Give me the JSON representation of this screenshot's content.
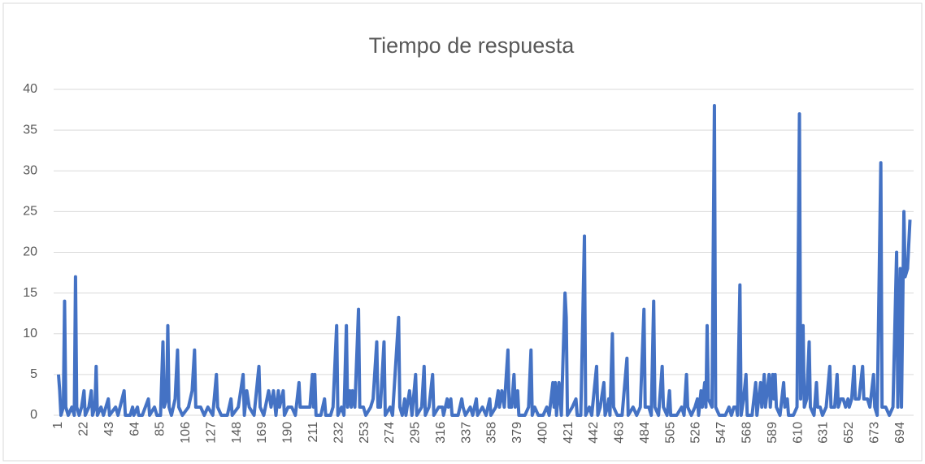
{
  "chart_data": {
    "type": "line",
    "title": "Tiempo de respuesta",
    "x": [
      1,
      2,
      3,
      5,
      6,
      7,
      9,
      12,
      14,
      15,
      16,
      18,
      20,
      22,
      23,
      26,
      28,
      29,
      31,
      32,
      33,
      36,
      38,
      42,
      43,
      48,
      50,
      55,
      56,
      60,
      62,
      63,
      66,
      67,
      70,
      75,
      76,
      80,
      82,
      85,
      87,
      88,
      90,
      91,
      92,
      94,
      97,
      99,
      100,
      103,
      108,
      111,
      113,
      114,
      118,
      121,
      124,
      128,
      131,
      132,
      135,
      140,
      143,
      144,
      149,
      151,
      153,
      154,
      156,
      158,
      162,
      166,
      167,
      170,
      174,
      176,
      178,
      180,
      182,
      183,
      186,
      187,
      190,
      193,
      196,
      199,
      200,
      205,
      208,
      210,
      211,
      212,
      213,
      217,
      220,
      221,
      225,
      227,
      230,
      231,
      234,
      236,
      238,
      239,
      241,
      242,
      243,
      245,
      248,
      249,
      252,
      254,
      258,
      260,
      263,
      264,
      266,
      269,
      270,
      274,
      276,
      281,
      282,
      284,
      286,
      287,
      290,
      292,
      295,
      296,
      300,
      302,
      303,
      306,
      309,
      310,
      314,
      317,
      318,
      321,
      322,
      324,
      325,
      330,
      333,
      334,
      336,
      340,
      342,
      345,
      346,
      350,
      353,
      356,
      357,
      361,
      363,
      364,
      366,
      368,
      371,
      372,
      374,
      376,
      377,
      379,
      380,
      385,
      388,
      390,
      391,
      393,
      396,
      400,
      403,
      405,
      408,
      409,
      410,
      411,
      413,
      415,
      418,
      419,
      420,
      424,
      427,
      428,
      431,
      434,
      435,
      438,
      440,
      444,
      445,
      447,
      450,
      451,
      453,
      454,
      455,
      457,
      458,
      461,
      465,
      469,
      470,
      474,
      477,
      480,
      483,
      484,
      487,
      489,
      491,
      492,
      495,
      498,
      499,
      502,
      504,
      505,
      510,
      514,
      516,
      518,
      519,
      522,
      525,
      527,
      528,
      530,
      531,
      533,
      534,
      535,
      536,
      539,
      541,
      542,
      545,
      550,
      553,
      555,
      557,
      559,
      560,
      562,
      563,
      565,
      567,
      568,
      572,
      575,
      576,
      579,
      580,
      582,
      583,
      586,
      587,
      589,
      590,
      591,
      592,
      595,
      598,
      599,
      601,
      602,
      606,
      609,
      611,
      612,
      614,
      615,
      617,
      619,
      620,
      623,
      625,
      626,
      628,
      630,
      633,
      636,
      637,
      640,
      642,
      643,
      645,
      647,
      649,
      651,
      652,
      654,
      656,
      657,
      660,
      663,
      664,
      667,
      669,
      672,
      673,
      675,
      678,
      679,
      682,
      685,
      688,
      691,
      692,
      694,
      695,
      697,
      698,
      700,
      702
    ],
    "values": [
      5,
      3,
      0,
      1,
      14,
      1,
      0,
      1,
      0,
      17,
      1,
      0,
      1,
      3,
      0,
      1,
      3,
      0,
      1,
      6,
      0,
      1,
      0,
      2,
      0,
      1,
      0,
      3,
      0,
      0,
      1,
      0,
      1,
      0,
      0,
      2,
      0,
      1,
      0,
      0,
      9,
      1,
      2,
      11,
      1,
      0,
      2,
      8,
      1,
      0,
      1,
      3,
      8,
      1,
      1,
      0,
      1,
      0,
      5,
      1,
      0,
      0,
      2,
      0,
      1,
      3,
      5,
      0,
      3,
      1,
      0,
      6,
      1,
      0,
      3,
      1,
      3,
      0,
      3,
      1,
      3,
      0,
      1,
      1,
      0,
      4,
      1,
      1,
      1,
      5,
      1,
      5,
      0,
      0,
      2,
      0,
      0,
      1,
      11,
      0,
      1,
      0,
      11,
      1,
      3,
      1,
      3,
      1,
      13,
      1,
      1,
      0,
      1,
      2,
      9,
      1,
      1,
      9,
      0,
      1,
      0,
      12,
      1,
      0,
      2,
      0,
      3,
      0,
      5,
      0,
      1,
      6,
      0,
      1,
      5,
      0,
      1,
      1,
      0,
      2,
      1,
      2,
      0,
      0,
      2,
      1,
      0,
      1,
      0,
      2,
      0,
      1,
      0,
      2,
      0,
      1,
      3,
      1,
      3,
      1,
      8,
      1,
      1,
      5,
      1,
      3,
      0,
      0,
      1,
      8,
      0,
      1,
      0,
      0,
      1,
      0,
      4,
      1,
      4,
      0,
      4,
      0,
      15,
      12,
      0,
      1,
      2,
      0,
      0,
      22,
      0,
      1,
      0,
      6,
      0,
      1,
      4,
      0,
      1,
      2,
      0,
      10,
      1,
      0,
      0,
      7,
      0,
      1,
      0,
      1,
      13,
      1,
      1,
      0,
      14,
      1,
      0,
      6,
      1,
      0,
      3,
      0,
      0,
      1,
      0,
      5,
      1,
      0,
      1,
      2,
      0,
      3,
      1,
      4,
      1,
      11,
      2,
      1,
      38,
      1,
      0,
      0,
      1,
      0,
      1,
      1,
      0,
      16,
      0,
      2,
      5,
      0,
      0,
      4,
      0,
      4,
      1,
      5,
      1,
      5,
      1,
      5,
      2,
      5,
      1,
      0,
      4,
      1,
      2,
      0,
      0,
      1,
      37,
      2,
      11,
      1,
      2,
      9,
      1,
      0,
      4,
      1,
      1,
      0,
      1,
      6,
      1,
      1,
      5,
      1,
      2,
      2,
      1,
      2,
      1,
      2,
      6,
      2,
      2,
      6,
      2,
      2,
      1,
      5,
      1,
      0,
      31,
      1,
      1,
      0,
      1,
      20,
      1,
      18,
      1,
      25,
      17,
      18,
      24
    ],
    "color": "#4472c4",
    "xlim": [
      -3,
      705
    ],
    "xticks": [
      1,
      22,
      43,
      64,
      85,
      106,
      127,
      148,
      169,
      190,
      211,
      232,
      253,
      274,
      295,
      316,
      337,
      358,
      379,
      400,
      421,
      442,
      463,
      484,
      505,
      526,
      547,
      568,
      589,
      610,
      631,
      652,
      673,
      694
    ],
    "ylim": [
      0,
      40
    ],
    "yticks": [
      0,
      5,
      10,
      15,
      20,
      25,
      30,
      35,
      40
    ],
    "grid": true
  }
}
